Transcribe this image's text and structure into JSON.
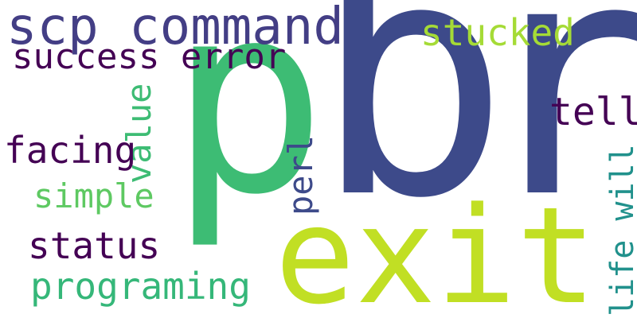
{
  "words": {
    "p": {
      "text": "p",
      "color": "#3dbc74"
    },
    "b": {
      "text": "b",
      "color": "#3d4a8a"
    },
    "r": {
      "text": "r",
      "color": "#3d4a8a"
    },
    "exit": {
      "text": "exit",
      "color": "#c1df24"
    },
    "scp_command": {
      "text": "scp command",
      "color": "#433e85"
    },
    "stucked": {
      "text": "stucked",
      "color": "#a5db36"
    },
    "success_error": {
      "text": "success error",
      "color": "#440154"
    },
    "value": {
      "text": "value",
      "color": "#3dbc74"
    },
    "tell": {
      "text": "tell",
      "color": "#440154"
    },
    "facing": {
      "text": "facing",
      "color": "#440154"
    },
    "perl": {
      "text": "perl",
      "color": "#3d4a8a"
    },
    "simple": {
      "text": "simple",
      "color": "#5ec962"
    },
    "life_will": {
      "text": "life will",
      "color": "#21918c"
    },
    "status": {
      "text": "status",
      "color": "#440154"
    },
    "programing": {
      "text": "programing",
      "color": "#35b779"
    }
  }
}
